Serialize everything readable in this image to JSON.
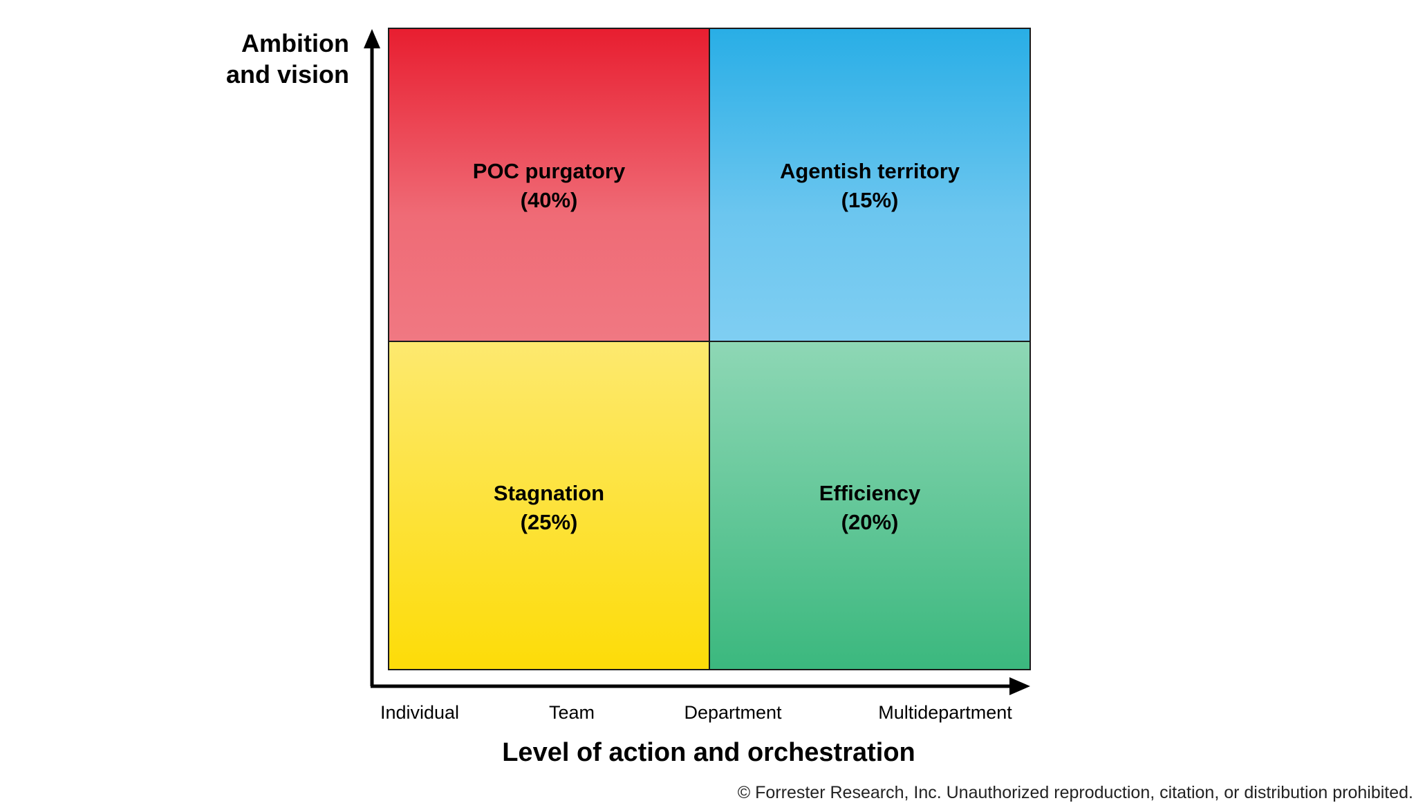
{
  "y_axis": {
    "label": "Ambition and vision"
  },
  "x_axis": {
    "label": "Level of action and orchestration",
    "levels": [
      "Individual",
      "Team",
      "Department",
      "Multidepartment"
    ]
  },
  "quadrants": [
    {
      "name": "POC purgatory",
      "share": "(40%)"
    },
    {
      "name": "Agentish territory",
      "share": "(15%)"
    },
    {
      "name": "Stagnation",
      "share": "(25%)"
    },
    {
      "name": "Efficiency",
      "share": "(20%)"
    }
  ],
  "footer": "© Forrester Research, Inc. Unauthorized reproduction, citation, or distribution prohibited."
}
